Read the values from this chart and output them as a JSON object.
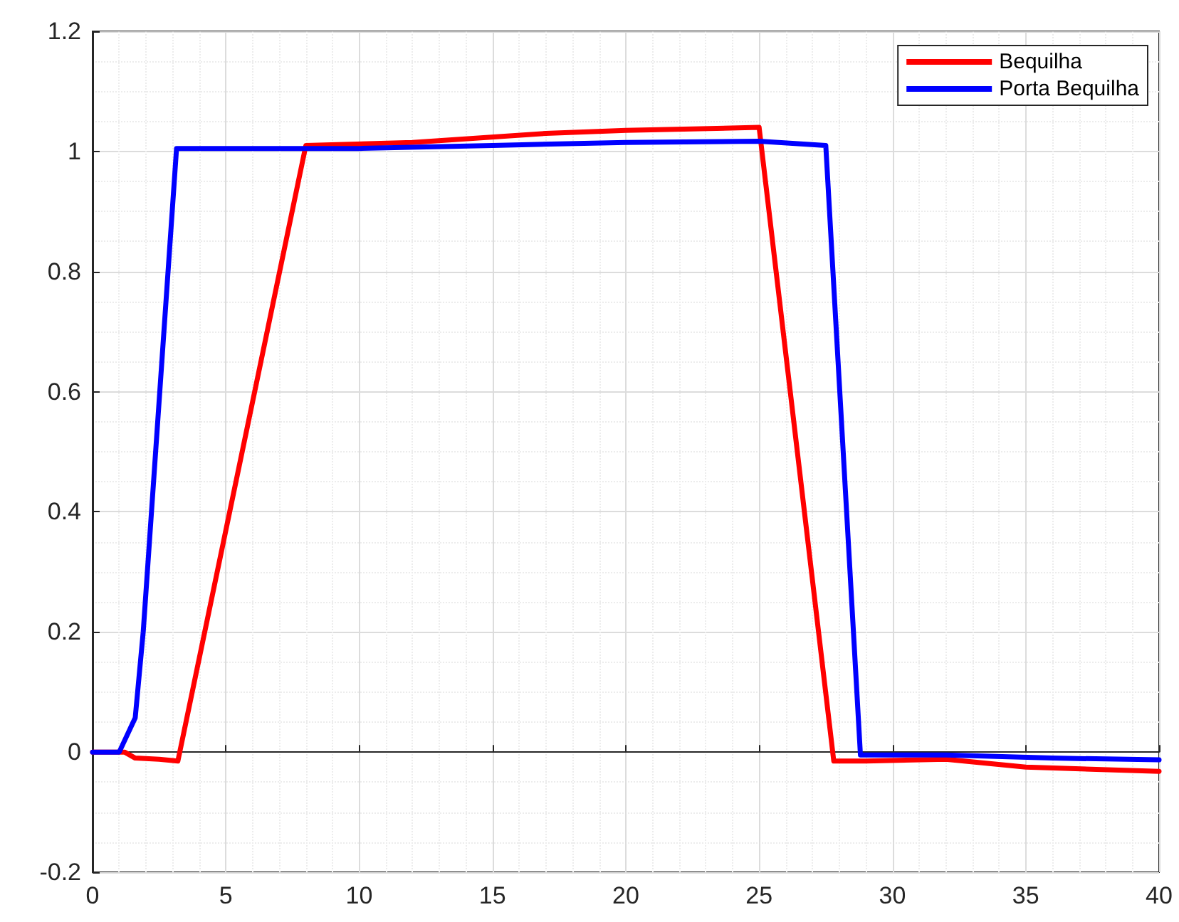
{
  "chart_data": {
    "type": "line",
    "xlim": [
      0,
      40
    ],
    "xticks": [
      0,
      5,
      10,
      15,
      20,
      25,
      30,
      35,
      40
    ],
    "ylim": [
      -0.2,
      1.2
    ],
    "yticks": [
      -0.2,
      0,
      0.2,
      0.4,
      0.6,
      0.8,
      1,
      1.2
    ],
    "grid": true,
    "legend": "top right",
    "marker": "none",
    "line_style": "solid",
    "series": [
      {
        "name": "Bequilha",
        "color": "#ff0000",
        "x": [
          0,
          1.2,
          1.6,
          2.5,
          3.2,
          8,
          12,
          17,
          20,
          25,
          27.8,
          29,
          32,
          35,
          40
        ],
        "values": [
          0,
          0,
          -0.01,
          -0.012,
          -0.015,
          1.01,
          1.015,
          1.03,
          1.035,
          1.04,
          -0.015,
          -0.015,
          -0.012,
          -0.025,
          -0.032
        ]
      },
      {
        "name": "Porta Bequilha",
        "color": "#0000ff",
        "x": [
          0,
          1,
          1.6,
          1.9,
          3.15,
          10,
          15,
          20,
          25,
          27.5,
          28.8,
          32,
          36,
          40
        ],
        "values": [
          0,
          0,
          0.057,
          0.2,
          1.005,
          1.005,
          1.01,
          1.015,
          1.017,
          1.01,
          -0.005,
          -0.005,
          -0.01,
          -0.013
        ]
      }
    ]
  }
}
